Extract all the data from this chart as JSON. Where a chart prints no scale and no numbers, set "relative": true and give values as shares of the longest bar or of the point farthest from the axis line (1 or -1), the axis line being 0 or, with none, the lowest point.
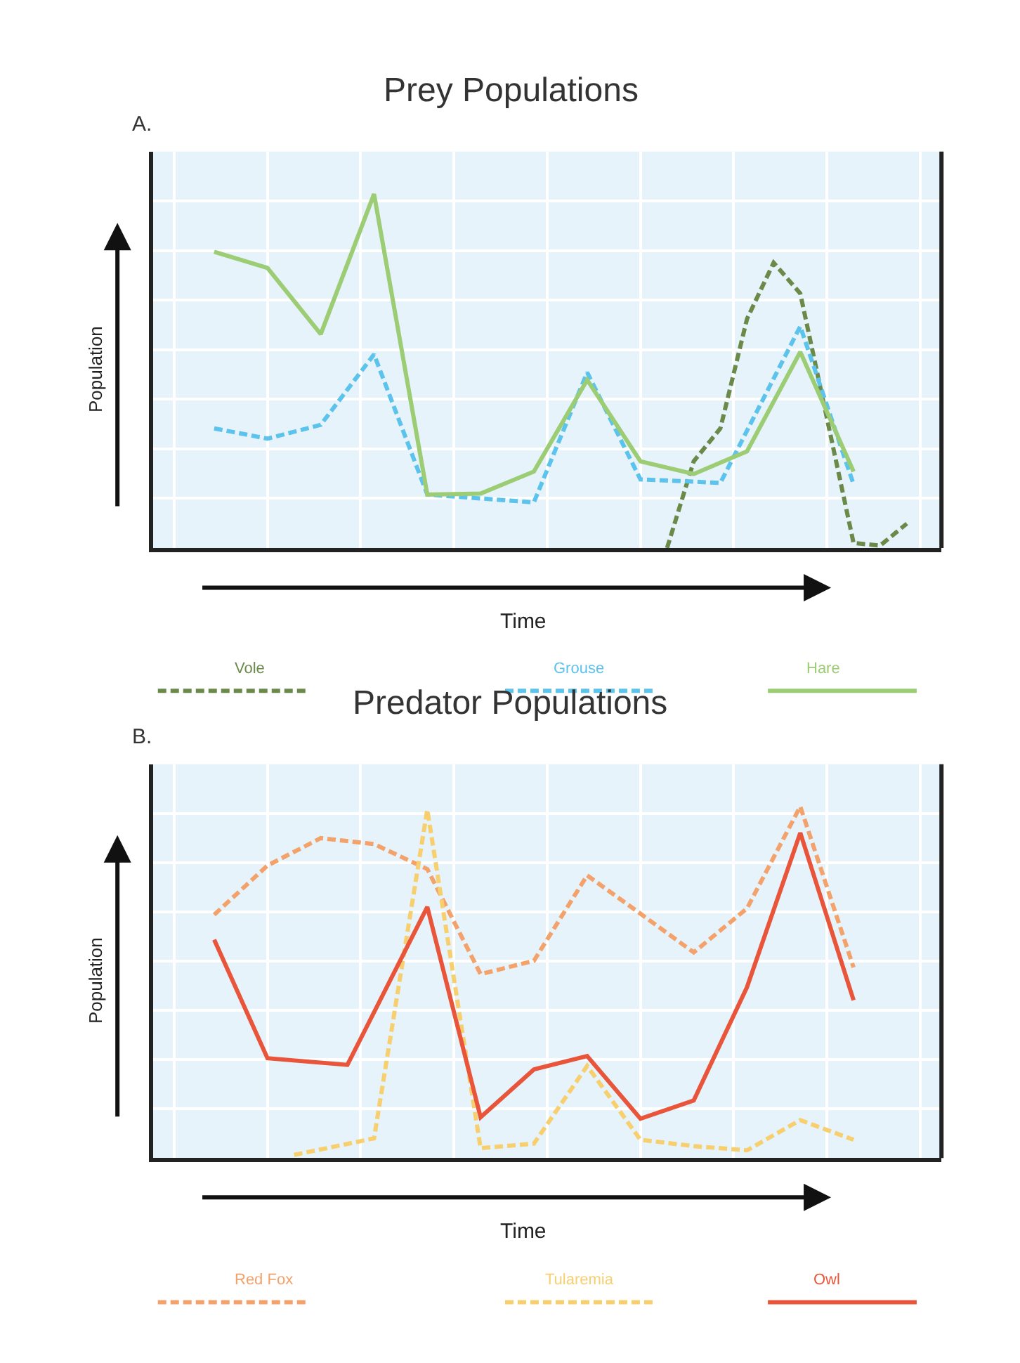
{
  "chart_data": [
    {
      "type": "line",
      "title": "Prey Populations",
      "annotations": [
        "A."
      ],
      "xlabel": "Time",
      "ylabel": "Population",
      "relative": true,
      "grid": true,
      "legend": "bottom",
      "marker": "none",
      "categories": [
        null,
        null,
        null,
        null,
        null,
        null,
        null,
        null,
        null,
        null,
        null,
        null,
        null,
        null,
        null,
        null,
        null,
        null,
        null,
        null,
        null,
        null,
        null,
        null,
        null,
        null,
        null,
        null,
        null,
        null
      ],
      "series": [
        {
          "name": "Vole",
          "color": "#6b8a4a",
          "line_style": "dashed",
          "values": [
            null,
            null,
            null,
            null,
            null,
            null,
            null,
            null,
            null,
            null,
            null,
            null,
            null,
            null,
            null,
            null,
            null,
            null,
            null,
            0,
            0.245,
            0.338,
            0.647,
            0.806,
            0.719,
            null,
            0.014,
            0.007,
            0.069,
            null
          ]
        },
        {
          "name": "Grouse",
          "color": "#5cc3ec",
          "line_style": "dashed",
          "values": [
            null,
            null,
            0.338,
            null,
            0.309,
            null,
            0.348,
            null,
            0.547,
            null,
            0.151,
            null,
            null,
            null,
            0.129,
            null,
            0.496,
            null,
            0.194,
            null,
            null,
            0.184,
            null,
            null,
            0.626,
            null,
            0.18,
            null,
            null,
            null
          ]
        },
        {
          "name": "Hare",
          "color": "#9ccc74",
          "line_style": "solid",
          "values": [
            null,
            null,
            0.837,
            null,
            0.791,
            null,
            0.604,
            null,
            1,
            null,
            0.151,
            null,
            0.154,
            null,
            0.216,
            null,
            0.475,
            null,
            0.245,
            null,
            0.209,
            null,
            0.273,
            null,
            0.554,
            null,
            0.216,
            null,
            null,
            null
          ]
        }
      ]
    },
    {
      "type": "line",
      "title": "Predator Populations",
      "annotations": [
        "B."
      ],
      "xlabel": "Time",
      "ylabel": "Population",
      "relative": true,
      "grid": true,
      "legend": "bottom",
      "marker": "none",
      "categories": [
        null,
        null,
        null,
        null,
        null,
        null,
        null,
        null,
        null,
        null,
        null,
        null,
        null,
        null,
        null,
        null,
        null,
        null,
        null,
        null,
        null,
        null,
        null,
        null,
        null,
        null,
        null,
        null,
        null,
        null
      ],
      "series": [
        {
          "name": "Red Fox",
          "color": "#f4a26c",
          "line_style": "dashed",
          "values": [
            null,
            null,
            0.692,
            null,
            0.832,
            null,
            0.91,
            null,
            0.893,
            null,
            0.822,
            null,
            0.523,
            null,
            0.561,
            null,
            0.804,
            null,
            0.695,
            null,
            0.585,
            null,
            0.71,
            null,
            1,
            null,
            0.542,
            null,
            null,
            null
          ]
        },
        {
          "name": "Tularemia",
          "color": "#f7cf6e",
          "line_style": "dashed",
          "values": [
            null,
            null,
            null,
            null,
            null,
            0.009,
            null,
            null,
            0.056,
            null,
            0.991,
            null,
            0.028,
            null,
            0.041,
            null,
            0.262,
            null,
            0.052,
            null,
            0.034,
            null,
            0.022,
            null,
            0.108,
            null,
            0.052,
            null,
            null,
            null
          ]
        },
        {
          "name": "Owl",
          "color": "#e8553a",
          "line_style": "solid",
          "values": [
            null,
            null,
            0.621,
            null,
            0.284,
            null,
            null,
            0.265,
            null,
            null,
            0.714,
            null,
            0.116,
            null,
            0.252,
            null,
            0.29,
            null,
            0.112,
            null,
            0.164,
            null,
            0.486,
            null,
            0.925,
            null,
            0.449,
            null,
            null,
            null
          ]
        }
      ]
    }
  ]
}
